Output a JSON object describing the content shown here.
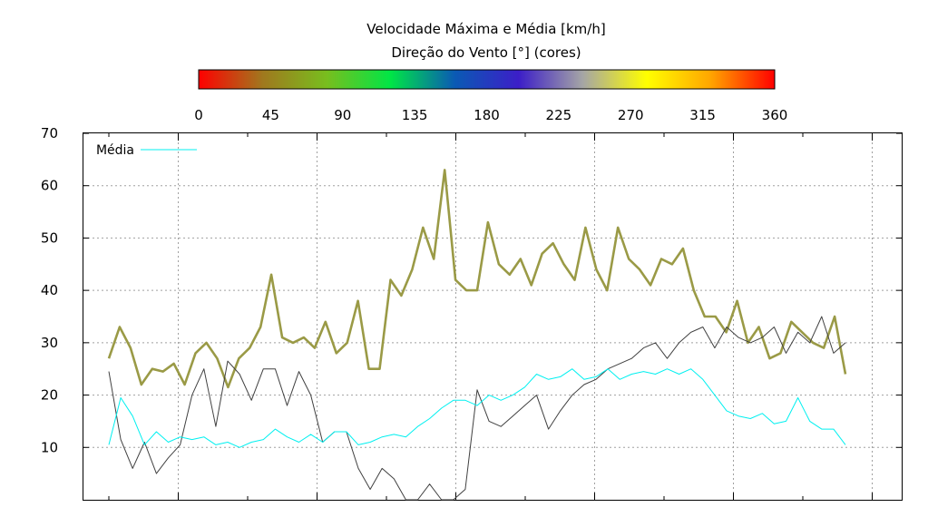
{
  "chart_data": {
    "type": "line",
    "title": "Velocidade Máxima e Média [km/h]",
    "subtitle": "Direção do Vento [°] (cores)",
    "colorbar": {
      "ticks": [
        "0",
        "45",
        "90",
        "135",
        "180",
        "225",
        "270",
        "315",
        "360"
      ],
      "range": [
        0,
        360
      ],
      "stops": [
        "#ff0000",
        "#a0781e",
        "#78be1e",
        "#00e646",
        "#0a5ab4",
        "#3c1ec8",
        "#a5a5a5",
        "#ffff00",
        "#ffa500",
        "#ff0000"
      ]
    },
    "ylim": [
      0,
      70
    ],
    "y_ticks": [
      "70",
      "60",
      "50",
      "40",
      "30",
      "20",
      "10"
    ],
    "x_tick_count": 12,
    "grid": true,
    "legend_position": "top-left",
    "series": [
      {
        "name": "Média",
        "role": "media",
        "color": "#00f0f0",
        "values": [
          10.5,
          19.5,
          16,
          10.5,
          13,
          11,
          12,
          11.5,
          12,
          10.5,
          11,
          10,
          11,
          11.5,
          13.5,
          12,
          11,
          12.5,
          11,
          13,
          13,
          10.5,
          11,
          12,
          12.5,
          12,
          14,
          15.5,
          17.5,
          19,
          19,
          18,
          20,
          19,
          20,
          21.5,
          24,
          23,
          23.5,
          25,
          23,
          23.5,
          25,
          23,
          24,
          24.5,
          24,
          25,
          24,
          25,
          23,
          20,
          17,
          16,
          15.5,
          16.5,
          14.5,
          15,
          19.5,
          15,
          13.5,
          13.5,
          10.5
        ]
      },
      {
        "name": "",
        "role": "media-direction",
        "color": "#404040",
        "values": [
          24.5,
          11.5,
          6,
          11,
          5,
          8,
          10.5,
          20,
          25,
          14,
          26.5,
          24,
          19,
          25,
          25,
          18,
          24.5,
          20,
          11,
          13,
          13,
          6,
          2,
          6,
          4,
          0,
          0,
          3,
          0,
          0,
          2,
          21,
          15,
          14,
          16,
          18,
          20,
          13.5,
          17,
          20,
          22,
          23,
          25,
          26,
          27,
          29,
          30,
          27,
          30,
          32,
          33,
          29,
          33,
          31,
          30,
          31,
          33,
          28,
          32,
          30,
          35,
          28,
          30
        ]
      },
      {
        "name": "",
        "role": "maxima",
        "color": "#9a9a46",
        "values": [
          27,
          33,
          29,
          22,
          25,
          24.5,
          26,
          22,
          28,
          30,
          27,
          21.5,
          27,
          29,
          33,
          43,
          31,
          30,
          31,
          29,
          34,
          28,
          30,
          38,
          25,
          25,
          42,
          39,
          44,
          52,
          46,
          63,
          42,
          40,
          40,
          53,
          45,
          43,
          46,
          41,
          47,
          49,
          45,
          42,
          52,
          44,
          40,
          52,
          46,
          44,
          41,
          46,
          45,
          48,
          40,
          35,
          35,
          32,
          38,
          30,
          33,
          27,
          28,
          34,
          32,
          30,
          29,
          35,
          24
        ]
      }
    ]
  }
}
